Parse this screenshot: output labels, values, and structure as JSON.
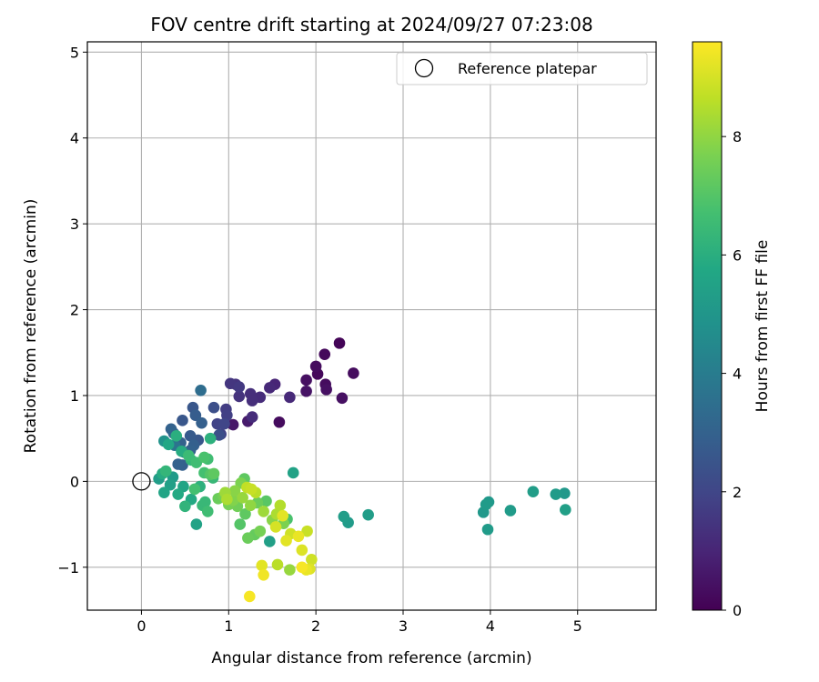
{
  "chart_data": {
    "type": "scatter",
    "title": "FOV centre drift starting at 2024/09/27 07:23:08",
    "xlabel": "Angular distance from reference (arcmin)",
    "ylabel": "Rotation from reference (arcmin)",
    "xlim": [
      -0.62,
      5.9
    ],
    "ylim": [
      -1.5,
      5.12
    ],
    "xticks": [
      0,
      1,
      2,
      3,
      4,
      5
    ],
    "yticks": [
      -1,
      0,
      1,
      2,
      3,
      4,
      5
    ],
    "grid": true,
    "legend": {
      "placement": "top-right",
      "entries": [
        "Reference platepar"
      ]
    },
    "reference_point": {
      "x": 0,
      "y": 0,
      "label": "Reference platepar"
    },
    "colorbar": {
      "label": "Hours from first FF file",
      "colormap": "viridis",
      "range": [
        0,
        9.6
      ],
      "ticks": [
        0,
        2,
        4,
        6,
        8
      ]
    },
    "points": [
      {
        "x": 2.27,
        "y": 1.61,
        "t": 0.1
      },
      {
        "x": 2.1,
        "y": 1.48,
        "t": 0.2
      },
      {
        "x": 2.0,
        "y": 1.34,
        "t": 0.3
      },
      {
        "x": 2.43,
        "y": 1.26,
        "t": 0.3
      },
      {
        "x": 2.02,
        "y": 1.25,
        "t": 0.2
      },
      {
        "x": 1.89,
        "y": 1.18,
        "t": 0.4
      },
      {
        "x": 2.11,
        "y": 1.13,
        "t": 0.3
      },
      {
        "x": 2.12,
        "y": 1.07,
        "t": 0.4
      },
      {
        "x": 1.89,
        "y": 1.05,
        "t": 0.5
      },
      {
        "x": 2.3,
        "y": 0.97,
        "t": 0.4
      },
      {
        "x": 1.58,
        "y": 0.69,
        "t": 0.3
      },
      {
        "x": 1.22,
        "y": 0.7,
        "t": 0.7
      },
      {
        "x": 1.05,
        "y": 0.66,
        "t": 0.6
      },
      {
        "x": 1.53,
        "y": 1.13,
        "t": 1.0
      },
      {
        "x": 1.47,
        "y": 1.09,
        "t": 1.1
      },
      {
        "x": 1.7,
        "y": 0.98,
        "t": 1.1
      },
      {
        "x": 1.36,
        "y": 0.98,
        "t": 1.2
      },
      {
        "x": 1.25,
        "y": 1.02,
        "t": 1.3
      },
      {
        "x": 1.27,
        "y": 0.94,
        "t": 1.3
      },
      {
        "x": 1.12,
        "y": 0.99,
        "t": 1.4
      },
      {
        "x": 1.02,
        "y": 1.14,
        "t": 1.5
      },
      {
        "x": 1.08,
        "y": 1.13,
        "t": 1.4
      },
      {
        "x": 1.12,
        "y": 1.1,
        "t": 1.6
      },
      {
        "x": 0.97,
        "y": 0.84,
        "t": 1.7
      },
      {
        "x": 0.98,
        "y": 0.77,
        "t": 1.8
      },
      {
        "x": 0.87,
        "y": 0.67,
        "t": 1.9
      },
      {
        "x": 0.91,
        "y": 0.55,
        "t": 1.9
      },
      {
        "x": 0.95,
        "y": 0.67,
        "t": 2.0
      },
      {
        "x": 1.27,
        "y": 0.75,
        "t": 1.2
      },
      {
        "x": 0.83,
        "y": 0.86,
        "t": 2.3
      },
      {
        "x": 0.89,
        "y": 0.54,
        "t": 2.3
      },
      {
        "x": 0.59,
        "y": 0.86,
        "t": 2.6
      },
      {
        "x": 0.47,
        "y": 0.71,
        "t": 2.6
      },
      {
        "x": 0.62,
        "y": 0.77,
        "t": 2.8
      },
      {
        "x": 0.69,
        "y": 0.68,
        "t": 2.9
      },
      {
        "x": 0.34,
        "y": 0.61,
        "t": 3.0
      },
      {
        "x": 0.37,
        "y": 0.56,
        "t": 3.1
      },
      {
        "x": 0.68,
        "y": 1.06,
        "t": 3.4
      },
      {
        "x": 0.56,
        "y": 0.53,
        "t": 2.7
      },
      {
        "x": 0.65,
        "y": 0.48,
        "t": 2.6
      },
      {
        "x": 0.45,
        "y": 0.45,
        "t": 3.0
      },
      {
        "x": 0.49,
        "y": 0.34,
        "t": 3.2
      },
      {
        "x": 0.6,
        "y": 0.42,
        "t": 2.9
      },
      {
        "x": 0.56,
        "y": 0.36,
        "t": 3.0
      },
      {
        "x": 0.38,
        "y": 0.42,
        "t": 3.7
      },
      {
        "x": 0.42,
        "y": 0.2,
        "t": 3.0
      },
      {
        "x": 0.47,
        "y": 0.19,
        "t": 2.9
      },
      {
        "x": 0.26,
        "y": 0.47,
        "t": 4.9
      },
      {
        "x": 0.31,
        "y": 0.43,
        "t": 5.7
      },
      {
        "x": 0.4,
        "y": 0.53,
        "t": 6.0
      },
      {
        "x": 0.54,
        "y": 0.3,
        "t": 6.5
      },
      {
        "x": 0.57,
        "y": 0.25,
        "t": 6.3
      },
      {
        "x": 0.46,
        "y": 0.35,
        "t": 5.9
      },
      {
        "x": 0.63,
        "y": 0.22,
        "t": 6.6
      },
      {
        "x": 0.72,
        "y": 0.28,
        "t": 6.8
      },
      {
        "x": 0.76,
        "y": 0.26,
        "t": 6.6
      },
      {
        "x": 0.79,
        "y": 0.5,
        "t": 6.1
      },
      {
        "x": 0.2,
        "y": 0.03,
        "t": 5.3
      },
      {
        "x": 0.24,
        "y": 0.09,
        "t": 5.9
      },
      {
        "x": 0.28,
        "y": 0.12,
        "t": 6.3
      },
      {
        "x": 0.26,
        "y": -0.13,
        "t": 5.6
      },
      {
        "x": 0.33,
        "y": -0.04,
        "t": 5.4
      },
      {
        "x": 0.36,
        "y": 0.05,
        "t": 5.2
      },
      {
        "x": 0.42,
        "y": -0.15,
        "t": 5.8
      },
      {
        "x": 0.48,
        "y": -0.06,
        "t": 5.6
      },
      {
        "x": 0.5,
        "y": -0.29,
        "t": 6.2
      },
      {
        "x": 0.57,
        "y": -0.21,
        "t": 5.8
      },
      {
        "x": 0.63,
        "y": -0.5,
        "t": 5.5
      },
      {
        "x": 0.61,
        "y": -0.09,
        "t": 6.7
      },
      {
        "x": 0.7,
        "y": -0.28,
        "t": 6.4
      },
      {
        "x": 0.76,
        "y": -0.35,
        "t": 6.6
      },
      {
        "x": 0.83,
        "y": 0.09,
        "t": 7.2
      },
      {
        "x": 0.79,
        "y": 0.08,
        "t": 7.0
      },
      {
        "x": 0.72,
        "y": 0.1,
        "t": 6.7
      },
      {
        "x": 0.88,
        "y": -0.2,
        "t": 7.4
      },
      {
        "x": 0.94,
        "y": -0.17,
        "t": 7.6
      },
      {
        "x": 1.0,
        "y": -0.27,
        "t": 7.6
      },
      {
        "x": 1.05,
        "y": -0.22,
        "t": 7.8
      },
      {
        "x": 1.1,
        "y": -0.29,
        "t": 7.5
      },
      {
        "x": 1.14,
        "y": -0.02,
        "t": 7.7
      },
      {
        "x": 1.18,
        "y": 0.03,
        "t": 7.2
      },
      {
        "x": 1.13,
        "y": -0.5,
        "t": 7.0
      },
      {
        "x": 1.19,
        "y": -0.38,
        "t": 7.2
      },
      {
        "x": 1.22,
        "y": -0.66,
        "t": 7.4
      },
      {
        "x": 1.3,
        "y": -0.62,
        "t": 7.3
      },
      {
        "x": 1.36,
        "y": -0.58,
        "t": 7.6
      },
      {
        "x": 1.25,
        "y": -0.28,
        "t": 8.0
      },
      {
        "x": 1.33,
        "y": -0.25,
        "t": 7.4
      },
      {
        "x": 1.4,
        "y": -0.35,
        "t": 8.2
      },
      {
        "x": 1.43,
        "y": -0.23,
        "t": 7.1
      },
      {
        "x": 1.47,
        "y": -0.7,
        "t": 5.4
      },
      {
        "x": 1.31,
        "y": -0.13,
        "t": 8.6
      },
      {
        "x": 1.26,
        "y": -0.09,
        "t": 8.8
      },
      {
        "x": 1.5,
        "y": -0.45,
        "t": 7.9
      },
      {
        "x": 1.55,
        "y": -0.38,
        "t": 8.4
      },
      {
        "x": 1.59,
        "y": -0.28,
        "t": 8.5
      },
      {
        "x": 1.63,
        "y": -0.49,
        "t": 7.7
      },
      {
        "x": 1.67,
        "y": -0.44,
        "t": 6.8
      },
      {
        "x": 1.54,
        "y": -0.53,
        "t": 9.0
      },
      {
        "x": 1.62,
        "y": -0.4,
        "t": 9.2
      },
      {
        "x": 1.66,
        "y": -0.69,
        "t": 9.2
      },
      {
        "x": 1.71,
        "y": -0.61,
        "t": 8.9
      },
      {
        "x": 1.8,
        "y": -0.64,
        "t": 9.3
      },
      {
        "x": 1.9,
        "y": -0.58,
        "t": 8.8
      },
      {
        "x": 1.84,
        "y": -0.8,
        "t": 9.1
      },
      {
        "x": 1.74,
        "y": 0.1,
        "t": 5.5
      },
      {
        "x": 1.56,
        "y": -0.97,
        "t": 8.6
      },
      {
        "x": 1.38,
        "y": -0.98,
        "t": 9.2
      },
      {
        "x": 1.4,
        "y": -1.09,
        "t": 9.4
      },
      {
        "x": 1.7,
        "y": -1.03,
        "t": 8.1
      },
      {
        "x": 1.84,
        "y": -1.0,
        "t": 9.5
      },
      {
        "x": 1.89,
        "y": -1.03,
        "t": 9.3
      },
      {
        "x": 1.93,
        "y": -1.02,
        "t": 9.1
      },
      {
        "x": 1.95,
        "y": -0.91,
        "t": 8.9
      },
      {
        "x": 1.24,
        "y": -1.34,
        "t": 9.5
      },
      {
        "x": 0.96,
        "y": -0.13,
        "t": 8.2
      },
      {
        "x": 0.98,
        "y": -0.21,
        "t": 8.4
      },
      {
        "x": 0.73,
        "y": -0.24,
        "t": 6.4
      },
      {
        "x": 0.67,
        "y": -0.06,
        "t": 6.1
      },
      {
        "x": 2.32,
        "y": -0.41,
        "t": 5.3
      },
      {
        "x": 2.37,
        "y": -0.48,
        "t": 5.2
      },
      {
        "x": 2.6,
        "y": -0.39,
        "t": 5.3
      },
      {
        "x": 3.92,
        "y": -0.36,
        "t": 5.1
      },
      {
        "x": 3.95,
        "y": -0.27,
        "t": 5.2
      },
      {
        "x": 3.98,
        "y": -0.24,
        "t": 5.1
      },
      {
        "x": 3.97,
        "y": -0.56,
        "t": 5.2
      },
      {
        "x": 4.23,
        "y": -0.34,
        "t": 5.2
      },
      {
        "x": 4.49,
        "y": -0.12,
        "t": 5.3
      },
      {
        "x": 4.75,
        "y": -0.15,
        "t": 5.2
      },
      {
        "x": 4.85,
        "y": -0.14,
        "t": 5.1
      },
      {
        "x": 4.86,
        "y": -0.33,
        "t": 5.4
      },
      {
        "x": 0.82,
        "y": 0.04,
        "t": 6.4
      },
      {
        "x": 1.07,
        "y": -0.11,
        "t": 7.9
      },
      {
        "x": 1.16,
        "y": -0.19,
        "t": 8.1
      },
      {
        "x": 1.21,
        "y": -0.07,
        "t": 8.7
      }
    ]
  }
}
